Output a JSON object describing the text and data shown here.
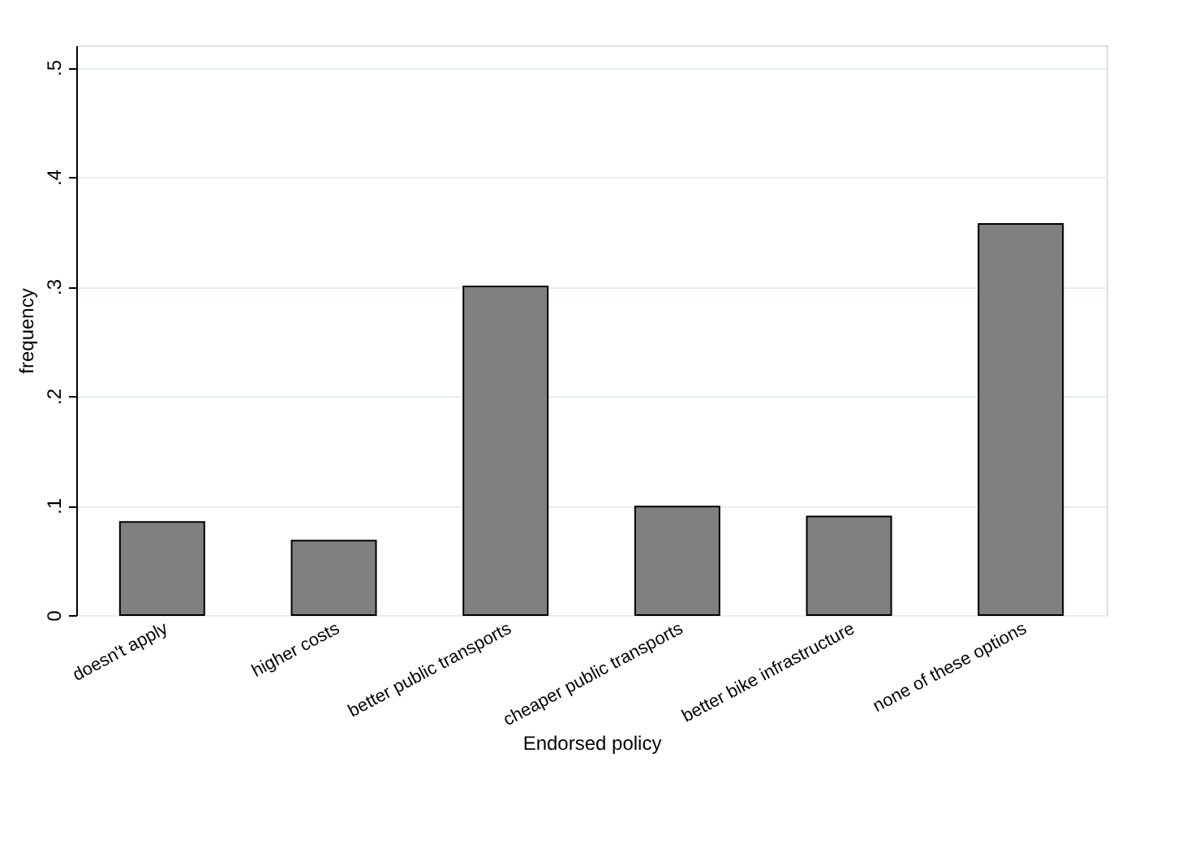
{
  "chart_data": {
    "type": "bar",
    "xlabel": "Endorsed policy",
    "ylabel": "frequency",
    "categories": [
      "doesn't apply",
      "higher costs",
      "better public transports",
      "cheaper public transports",
      "better bike infrastructure",
      "none of these options"
    ],
    "values": [
      0.085,
      0.068,
      0.3,
      0.099,
      0.09,
      0.357
    ],
    "color": "#808080",
    "ylim": [
      0,
      0.52
    ],
    "yticks": [
      0,
      {
        "value": 0.1,
        "label": ".1"
      },
      {
        "value": 0.2,
        "label": ".2"
      },
      {
        "value": 0.3,
        "label": ".3"
      },
      {
        "value": 0.4,
        "label": ".4"
      },
      {
        "value": 0.5,
        "label": ".5"
      }
    ],
    "grid": "y"
  }
}
